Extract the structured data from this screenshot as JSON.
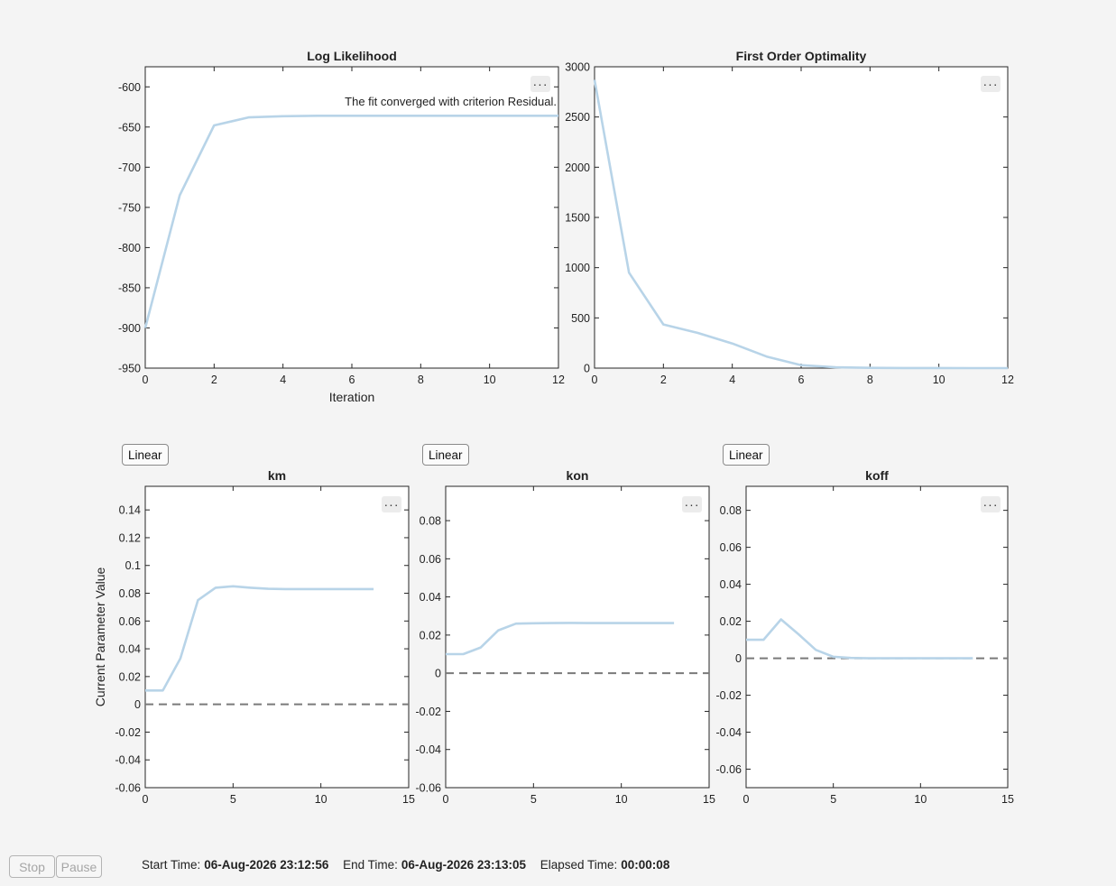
{
  "chart_data": [
    {
      "id": "loglik",
      "type": "line",
      "title": "Log Likelihood",
      "xlabel": "Iteration",
      "ylabel": "",
      "xlim": [
        0,
        12
      ],
      "ylim": [
        -950,
        -575
      ],
      "xticks": [
        0,
        2,
        4,
        6,
        8,
        10,
        12
      ],
      "yticks": [
        -950,
        -900,
        -850,
        -800,
        -750,
        -700,
        -650,
        -600
      ],
      "annotation": "The fit converged with criterion Residual.",
      "x": [
        0,
        1,
        2,
        3,
        4,
        5,
        6,
        7,
        8,
        9,
        10,
        11,
        12
      ],
      "y": [
        -900,
        -735,
        -648,
        -638,
        -636.5,
        -636,
        -636,
        -636,
        -636,
        -636,
        -636,
        -636,
        -636
      ],
      "series_color": "#b8d4e8"
    },
    {
      "id": "optimality",
      "type": "line",
      "title": "First Order Optimality",
      "xlabel": "",
      "ylabel": "",
      "xlim": [
        0,
        12
      ],
      "ylim": [
        0,
        3000
      ],
      "xticks": [
        0,
        2,
        4,
        6,
        8,
        10,
        12
      ],
      "yticks": [
        0,
        500,
        1000,
        1500,
        2000,
        2500,
        3000
      ],
      "x": [
        0,
        1,
        2,
        3,
        4,
        5,
        6,
        7,
        8,
        9,
        10,
        11,
        12
      ],
      "y": [
        2870,
        950,
        435,
        350,
        245,
        115,
        30,
        8,
        3,
        1,
        0.5,
        0.2,
        0.1
      ],
      "series_color": "#b8d4e8"
    },
    {
      "id": "km",
      "type": "line",
      "title": "km",
      "xlabel": "",
      "ylabel": "Current Parameter Value",
      "xlim": [
        0,
        15
      ],
      "ylim": [
        -0.06,
        0.157
      ],
      "xticks": [
        0,
        5,
        10,
        15
      ],
      "yticks": [
        -0.06,
        -0.04,
        -0.02,
        0,
        0.02,
        0.04,
        0.06,
        0.08,
        0.1,
        0.12,
        0.14
      ],
      "ytick_labels": [
        "-0.06",
        "-0.04",
        "-0.02",
        "0",
        "0.02",
        "0.04",
        "0.06",
        "0.08",
        "0.1",
        "0.12",
        "0.14"
      ],
      "x": [
        0,
        1,
        2,
        3,
        4,
        5,
        6,
        7,
        8,
        9,
        10,
        11,
        12,
        13
      ],
      "y": [
        0.01,
        0.01,
        0.033,
        0.075,
        0.084,
        0.085,
        0.084,
        0.0832,
        0.083,
        0.083,
        0.083,
        0.083,
        0.083,
        0.083
      ],
      "baseline": 0,
      "series_color": "#b8d4e8"
    },
    {
      "id": "kon",
      "type": "line",
      "title": "kon",
      "xlabel": "",
      "ylabel": "",
      "xlim": [
        0,
        15
      ],
      "ylim": [
        -0.06,
        0.098
      ],
      "xticks": [
        0,
        5,
        10,
        15
      ],
      "yticks": [
        -0.06,
        -0.04,
        -0.02,
        0,
        0.02,
        0.04,
        0.06,
        0.08
      ],
      "ytick_labels": [
        "-0.06",
        "-0.04",
        "-0.02",
        "0",
        "0.02",
        "0.04",
        "0.06",
        "0.08"
      ],
      "x": [
        0,
        1,
        2,
        3,
        4,
        5,
        6,
        7,
        8,
        9,
        10,
        11,
        12,
        13
      ],
      "y": [
        0.01,
        0.01,
        0.0135,
        0.0225,
        0.026,
        0.0262,
        0.0263,
        0.0264,
        0.0263,
        0.0263,
        0.0263,
        0.0263,
        0.0263,
        0.0263
      ],
      "baseline": 0,
      "series_color": "#b8d4e8"
    },
    {
      "id": "koff",
      "type": "line",
      "title": "koff",
      "xlabel": "",
      "ylabel": "",
      "xlim": [
        0,
        15
      ],
      "ylim": [
        -0.07,
        0.093
      ],
      "xticks": [
        0,
        5,
        10,
        15
      ],
      "yticks": [
        -0.06,
        -0.04,
        -0.02,
        0,
        0.02,
        0.04,
        0.06,
        0.08
      ],
      "ytick_labels": [
        "-0.06",
        "-0.04",
        "-0.02",
        "0",
        "0.02",
        "0.04",
        "0.06",
        "0.08"
      ],
      "x": [
        0,
        1,
        2,
        3,
        4,
        5,
        6,
        7,
        8,
        9,
        10,
        11,
        12,
        13
      ],
      "y": [
        0.01,
        0.01,
        0.021,
        0.013,
        0.0045,
        0.0008,
        0.0002,
        0,
        0,
        0,
        0,
        0,
        0,
        0
      ],
      "baseline": 0,
      "series_color": "#b8d4e8"
    }
  ],
  "scale_buttons": {
    "km": "Linear",
    "kon": "Linear",
    "koff": "Linear"
  },
  "axes_toolbar_glyph": "···",
  "controls": {
    "stop": "Stop",
    "pause": "Pause"
  },
  "status": {
    "start_label": "Start Time:",
    "start_value": "06-Aug-2026 23:12:56",
    "end_label": "End Time:",
    "end_value": "06-Aug-2026 23:13:05",
    "elapsed_label": "Elapsed Time:",
    "elapsed_value": "00:00:08"
  }
}
